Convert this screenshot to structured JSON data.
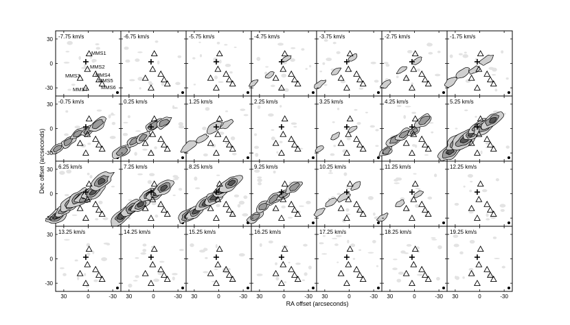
{
  "figure": {
    "xlabel": "RA offset (arcseconds)",
    "ylabel": "Dec offset (arcseconds)",
    "x_ticks": [
      "30",
      "0",
      "-30"
    ],
    "y_ticks": [
      "30",
      "0",
      "-30"
    ],
    "rows": 4,
    "cols": 7
  },
  "channels": [
    "-7.75 km/s",
    "-6.75 km/s",
    "-5.75 km/s",
    "-4.75 km/s",
    "-3.75 km/s",
    "-2.75 km/s",
    "-1.75 km/s",
    "-0.75 km/s",
    "0.25 km/s",
    "1.25 km/s",
    "2.25 km/s",
    "3.25 km/s",
    "4.25 km/s",
    "5.25 km/s",
    "6.25 km/s",
    "7.25 km/s",
    "8.25 km/s",
    "9.25 km/s",
    "10.25 km/s",
    "11.25 km/s",
    "12.25 km/s",
    "13.25 km/s",
    "14.25 km/s",
    "15.25 km/s",
    "16.25 km/s",
    "17.25 km/s",
    "18.25 km/s",
    "19.25 km/s"
  ],
  "source_labels": [
    "MMS1",
    "MMS2",
    "MMS3",
    "MMS4",
    "MMS5",
    "MMS6",
    "MMS7"
  ],
  "sources": [
    {
      "name": "MMS1",
      "ra": -1,
      "dec": 12
    },
    {
      "name": "MMS2",
      "ra": 1,
      "dec": -7
    },
    {
      "name": "MMS3",
      "ra": 10,
      "dec": -18
    },
    {
      "name": "MMS4",
      "ra": -9,
      "dec": -13
    },
    {
      "name": "MMS5",
      "ra": -13,
      "dec": -20
    },
    {
      "name": "MMS6",
      "ra": -17,
      "dec": -25
    },
    {
      "name": "MMS7",
      "ra": 3,
      "dec": -30
    }
  ],
  "center_marker": {
    "ra": 3,
    "dec": 2
  },
  "emission_intensity": [
    0,
    0.05,
    0.1,
    0.15,
    0.2,
    0.25,
    0.35,
    0.55,
    0.6,
    0.45,
    0.1,
    0.15,
    0.5,
    1.0,
    0.9,
    0.85,
    0.75,
    0.5,
    0.3,
    0.2,
    0.08,
    0.05,
    0.05,
    0.05,
    0.05,
    0.05,
    0.05,
    0.05
  ]
}
